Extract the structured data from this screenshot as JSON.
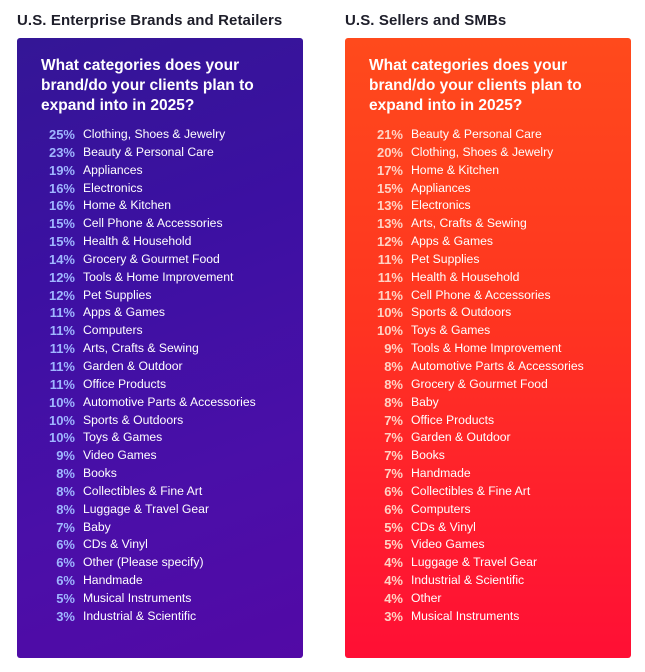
{
  "chart_data": [
    {
      "type": "table",
      "title": "U.S. Enterprise Brands and Retailers",
      "question": "What categories does your brand/do your clients plan to expand into in 2025?",
      "colors": {
        "panel": "#3c10a2",
        "percent": "#9fb6ff"
      },
      "rows": [
        {
          "pct": "25%",
          "label": "Clothing, Shoes & Jewelry"
        },
        {
          "pct": "23%",
          "label": "Beauty & Personal Care"
        },
        {
          "pct": "19%",
          "label": "Appliances"
        },
        {
          "pct": "16%",
          "label": "Electronics"
        },
        {
          "pct": "16%",
          "label": "Home & Kitchen"
        },
        {
          "pct": "15%",
          "label": "Cell Phone & Accessories"
        },
        {
          "pct": "15%",
          "label": "Health & Household"
        },
        {
          "pct": "14%",
          "label": "Grocery & Gourmet Food"
        },
        {
          "pct": "12%",
          "label": "Tools & Home Improvement"
        },
        {
          "pct": "12%",
          "label": "Pet Supplies"
        },
        {
          "pct": "11%",
          "label": "Apps & Games"
        },
        {
          "pct": "11%",
          "label": "Computers"
        },
        {
          "pct": "11%",
          "label": "Arts, Crafts & Sewing"
        },
        {
          "pct": "11%",
          "label": "Garden & Outdoor"
        },
        {
          "pct": "11%",
          "label": "Office Products"
        },
        {
          "pct": "10%",
          "label": "Automotive Parts & Accessories"
        },
        {
          "pct": "10%",
          "label": "Sports & Outdoors"
        },
        {
          "pct": "10%",
          "label": "Toys & Games"
        },
        {
          "pct": "9%",
          "label": "Video Games"
        },
        {
          "pct": "8%",
          "label": "Books"
        },
        {
          "pct": "8%",
          "label": "Collectibles & Fine Art"
        },
        {
          "pct": "8%",
          "label": "Luggage & Travel Gear"
        },
        {
          "pct": "7%",
          "label": "Baby"
        },
        {
          "pct": "6%",
          "label": "CDs & Vinyl"
        },
        {
          "pct": "6%",
          "label": "Other (Please specify)"
        },
        {
          "pct": "6%",
          "label": "Handmade"
        },
        {
          "pct": "5%",
          "label": "Musical Instruments"
        },
        {
          "pct": "3%",
          "label": "Industrial & Scientific"
        }
      ]
    },
    {
      "type": "table",
      "title": "U.S. Sellers and SMBs",
      "question": "What categories does your brand/do your clients plan to expand into in 2025?",
      "colors": {
        "panel": "#ff3520",
        "percent": "#ffd2c4"
      },
      "rows": [
        {
          "pct": "21%",
          "label": "Beauty & Personal Care"
        },
        {
          "pct": "20%",
          "label": "Clothing, Shoes & Jewelry"
        },
        {
          "pct": "17%",
          "label": "Home & Kitchen"
        },
        {
          "pct": "15%",
          "label": "Appliances"
        },
        {
          "pct": "13%",
          "label": "Electronics"
        },
        {
          "pct": "13%",
          "label": "Arts, Crafts & Sewing"
        },
        {
          "pct": "12%",
          "label": "Apps & Games"
        },
        {
          "pct": "11%",
          "label": "Pet Supplies"
        },
        {
          "pct": "11%",
          "label": "Health & Household"
        },
        {
          "pct": "11%",
          "label": "Cell Phone & Accessories"
        },
        {
          "pct": "10%",
          "label": "Sports & Outdoors"
        },
        {
          "pct": "10%",
          "label": "Toys & Games"
        },
        {
          "pct": "9%",
          "label": "Tools & Home Improvement"
        },
        {
          "pct": "8%",
          "label": "Automotive Parts & Accessories"
        },
        {
          "pct": "8%",
          "label": "Grocery & Gourmet Food"
        },
        {
          "pct": "8%",
          "label": "Baby"
        },
        {
          "pct": "7%",
          "label": "Office Products"
        },
        {
          "pct": "7%",
          "label": "Garden & Outdoor"
        },
        {
          "pct": "7%",
          "label": "Books"
        },
        {
          "pct": "7%",
          "label": "Handmade"
        },
        {
          "pct": "6%",
          "label": "Collectibles & Fine Art"
        },
        {
          "pct": "6%",
          "label": "Computers"
        },
        {
          "pct": "5%",
          "label": "CDs & Vinyl"
        },
        {
          "pct": "5%",
          "label": "Video Games"
        },
        {
          "pct": "4%",
          "label": "Luggage & Travel Gear"
        },
        {
          "pct": "4%",
          "label": "Industrial & Scientific"
        },
        {
          "pct": "4%",
          "label": "Other"
        },
        {
          "pct": "3%",
          "label": "Musical Instruments"
        }
      ]
    }
  ]
}
